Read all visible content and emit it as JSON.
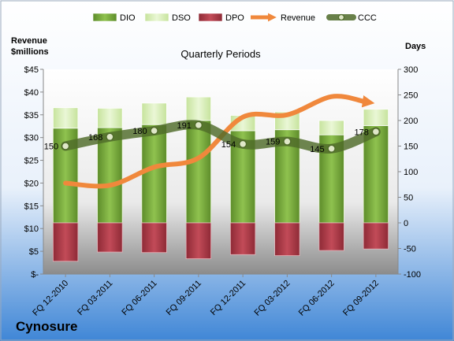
{
  "chart_data": {
    "type": "bar",
    "title": "Quarterly Periods",
    "company": "Cynosure",
    "y_left_label_line1": "Revenue",
    "y_left_label_line2": "$millions",
    "y_right_label": "Days",
    "categories": [
      "FQ 12-2010",
      "FQ 03-2011",
      "FQ 06-2011",
      "FQ 09-2011",
      "FQ 12-2011",
      "FQ 03-2012",
      "FQ 06-2012",
      "FQ 09-2012"
    ],
    "y_left_ticks": [
      "$-",
      "$5",
      "$10",
      "$15",
      "$20",
      "$25",
      "$30",
      "$35",
      "$40",
      "$45"
    ],
    "y_left_range": [
      0,
      45
    ],
    "y_right_ticks": [
      "-100",
      "-50",
      "0",
      "50",
      "100",
      "150",
      "200",
      "250",
      "300"
    ],
    "y_right_range": [
      -100,
      300
    ],
    "legend": [
      "DIO",
      "DSO",
      "DPO",
      "Revenue",
      "CCC"
    ],
    "legend_position": "top",
    "series": [
      {
        "name": "DIO",
        "type": "bar",
        "axis": "right",
        "values": [
          185,
          186,
          192,
          200,
          180,
          182,
          172,
          190
        ]
      },
      {
        "name": "DSO",
        "type": "bar",
        "axis": "right",
        "values": [
          40,
          38,
          42,
          46,
          30,
          35,
          28,
          32
        ]
      },
      {
        "name": "DPO",
        "type": "bar",
        "axis": "right",
        "values": [
          -75,
          -57,
          -58,
          -70,
          -62,
          -64,
          -54,
          -51
        ]
      },
      {
        "name": "Revenue",
        "type": "line",
        "axis": "left",
        "values": [
          20.0,
          19.5,
          23.5,
          25.5,
          34.5,
          35.0,
          39.0,
          37.5
        ]
      },
      {
        "name": "CCC",
        "type": "line",
        "axis": "right",
        "values": [
          150,
          168,
          180,
          191,
          154,
          159,
          145,
          178
        ]
      }
    ],
    "ccc_labels": [
      "150",
      "168",
      "180",
      "191",
      "154",
      "159",
      "145",
      "178"
    ],
    "colors": {
      "DIO": "#7cb342",
      "DSO": "#d7efb5",
      "DPO": "#b23a48",
      "Revenue": "#f0883c",
      "CCC": "#4f6b2a"
    },
    "grid": false
  }
}
